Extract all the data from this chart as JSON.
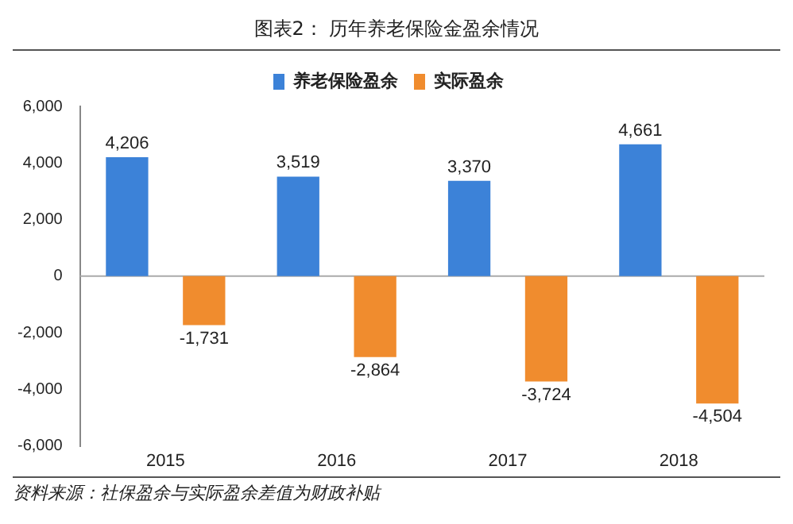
{
  "chart_data": {
    "type": "bar",
    "title": "图表2：  历年养老保险金盈余情况",
    "categories": [
      "2015",
      "2016",
      "2017",
      "2018"
    ],
    "series": [
      {
        "name": "养老保险盈余",
        "color": "#3c82d8",
        "values": [
          4206,
          3519,
          3370,
          4661
        ],
        "value_labels": [
          "4,206",
          "3,519",
          "3,370",
          "4,661"
        ]
      },
      {
        "name": "实际盈余",
        "color": "#f08c2e",
        "values": [
          -1731,
          -2864,
          -3724,
          -4504
        ],
        "value_labels": [
          "-1,731",
          "-2,864",
          "-3,724",
          "-4,504"
        ]
      }
    ],
    "ylim": [
      -6000,
      6000
    ],
    "yticks": [
      {
        "value": -6000,
        "label": "-6,000"
      },
      {
        "value": -4000,
        "label": "-4,000"
      },
      {
        "value": -2000,
        "label": "-2,000"
      },
      {
        "value": 0,
        "label": "0"
      },
      {
        "value": 2000,
        "label": "2,000"
      },
      {
        "value": 4000,
        "label": "4,000"
      },
      {
        "value": 6000,
        "label": "6,000"
      }
    ],
    "grid": false,
    "legend": "top",
    "ref_lines": [
      {
        "axis": "y",
        "value": 0,
        "color": "#aaaaaa"
      }
    ],
    "annotations": [
      "资料来源：社保盈余与实际盈余差值为财政补贴"
    ]
  }
}
